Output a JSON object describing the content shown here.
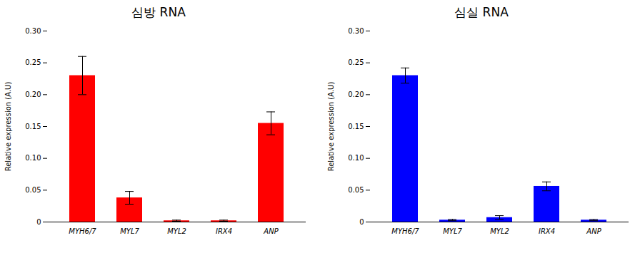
{
  "chart_data": [
    {
      "type": "bar",
      "title": "심방 RNA",
      "ylabel": "Relative expression (A.U)",
      "categories": [
        "MYH6/7",
        "MYL7",
        "MYL2",
        "IRX4",
        "ANP"
      ],
      "values": [
        0.23,
        0.038,
        0.002,
        0.002,
        0.155
      ],
      "errors": [
        0.03,
        0.01,
        0.001,
        0.001,
        0.018
      ],
      "color": "#FF0000",
      "ylim": [
        0,
        0.3
      ],
      "yticks": [
        0,
        0.05,
        {
          "value": 0.1,
          "label": "0.10"
        },
        0.15,
        {
          "value": 0.2,
          "label": "0.20"
        },
        0.25,
        {
          "value": 0.3,
          "label": "0.30"
        }
      ],
      "grid": false
    },
    {
      "type": "bar",
      "title": "심실 RNA",
      "ylabel": "Relative expression (A.U)",
      "categories": [
        "MYH6/7",
        "MYL7",
        "MYL2",
        "IRX4",
        "ANP"
      ],
      "values": [
        0.23,
        0.003,
        0.007,
        0.056,
        0.003
      ],
      "errors": [
        0.012,
        0.001,
        0.003,
        0.007,
        0.001
      ],
      "color": "#0000FF",
      "ylim": [
        0,
        0.3
      ],
      "yticks": [
        0,
        0.05,
        {
          "value": 0.1,
          "label": "0.10"
        },
        0.15,
        {
          "value": 0.2,
          "label": "0.20"
        },
        0.25,
        {
          "value": 0.3,
          "label": "0.30"
        }
      ],
      "grid": false
    }
  ]
}
